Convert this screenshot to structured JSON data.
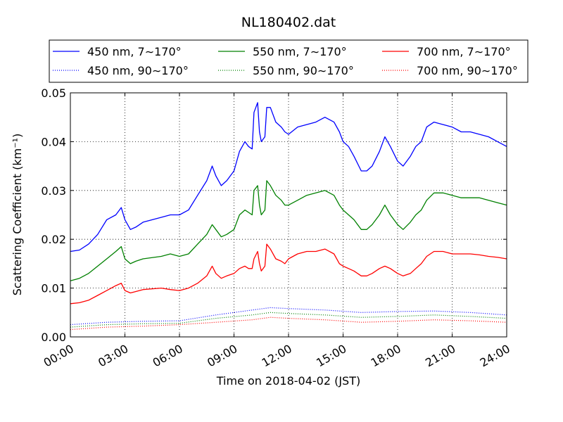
{
  "chart_data": {
    "type": "line",
    "title": "NL180402.dat",
    "xlabel": "Time on 2018-04-02 (JST)",
    "ylabel": "Scattering Coefficient (km⁻¹)",
    "x_unit": "hours",
    "xlim": [
      0,
      24
    ],
    "ylim": [
      0,
      0.05
    ],
    "x_ticks": [
      0,
      3,
      6,
      9,
      12,
      15,
      18,
      21,
      24
    ],
    "x_tick_labels": [
      "00:00",
      "03:00",
      "06:00",
      "09:00",
      "12:00",
      "15:00",
      "18:00",
      "21:00",
      "24:00"
    ],
    "y_ticks": [
      0,
      0.01,
      0.02,
      0.03,
      0.04,
      0.05
    ],
    "y_tick_labels": [
      "0.00",
      "0.01",
      "0.02",
      "0.03",
      "0.04",
      "0.05"
    ],
    "grid": true,
    "legend_position": "top",
    "series": [
      {
        "name": "450 nm, 7∼170°",
        "color": "#0000ff",
        "style": "solid",
        "x": [
          0,
          0.5,
          1,
          1.5,
          2,
          2.5,
          2.8,
          3,
          3.3,
          3.6,
          4,
          5,
          5.5,
          6,
          6.5,
          7,
          7.5,
          7.8,
          8,
          8.3,
          8.6,
          9,
          9.3,
          9.6,
          9.8,
          10,
          10.1,
          10.3,
          10.4,
          10.5,
          10.7,
          10.8,
          11,
          11.3,
          11.6,
          11.8,
          12,
          12.5,
          13,
          13.5,
          14,
          14.5,
          14.8,
          15,
          15.3,
          15.6,
          16,
          16.3,
          16.6,
          17,
          17.3,
          17.6,
          18,
          18.3,
          18.7,
          19,
          19.3,
          19.6,
          20,
          20.5,
          21,
          21.5,
          22,
          22.5,
          23,
          23.5,
          24
        ],
        "y": [
          0.0175,
          0.0178,
          0.019,
          0.021,
          0.024,
          0.025,
          0.0265,
          0.024,
          0.022,
          0.0225,
          0.0235,
          0.0245,
          0.025,
          0.025,
          0.026,
          0.029,
          0.032,
          0.035,
          0.033,
          0.031,
          0.032,
          0.034,
          0.038,
          0.04,
          0.039,
          0.0385,
          0.046,
          0.048,
          0.042,
          0.04,
          0.041,
          0.047,
          0.047,
          0.044,
          0.043,
          0.042,
          0.0415,
          0.043,
          0.0435,
          0.044,
          0.045,
          0.044,
          0.042,
          0.04,
          0.039,
          0.037,
          0.034,
          0.034,
          0.035,
          0.038,
          0.041,
          0.039,
          0.036,
          0.035,
          0.037,
          0.039,
          0.04,
          0.043,
          0.044,
          0.0435,
          0.043,
          0.042,
          0.042,
          0.0415,
          0.041,
          0.04,
          0.039
        ]
      },
      {
        "name": "450 nm, 90∼170°",
        "color": "#0000ff",
        "style": "dotted",
        "x": [
          0,
          2,
          4,
          6,
          8,
          10,
          11,
          12,
          14,
          16,
          18,
          20,
          22,
          24
        ],
        "y": [
          0.0025,
          0.003,
          0.0032,
          0.0033,
          0.0045,
          0.0055,
          0.006,
          0.0058,
          0.0055,
          0.005,
          0.0052,
          0.0053,
          0.005,
          0.0045
        ]
      },
      {
        "name": "550 nm, 7∼170°",
        "color": "#008000",
        "style": "solid",
        "x": [
          0,
          0.5,
          1,
          1.5,
          2,
          2.5,
          2.8,
          3,
          3.3,
          3.6,
          4,
          5,
          5.5,
          6,
          6.5,
          7,
          7.5,
          7.8,
          8,
          8.3,
          8.6,
          9,
          9.3,
          9.6,
          9.8,
          10,
          10.1,
          10.3,
          10.4,
          10.5,
          10.7,
          10.8,
          11,
          11.3,
          11.6,
          11.8,
          12,
          12.5,
          13,
          13.5,
          14,
          14.5,
          14.8,
          15,
          15.3,
          15.6,
          16,
          16.3,
          16.6,
          17,
          17.3,
          17.6,
          18,
          18.3,
          18.7,
          19,
          19.3,
          19.6,
          20,
          20.5,
          21,
          21.5,
          22,
          22.5,
          23,
          23.5,
          24
        ],
        "y": [
          0.0115,
          0.012,
          0.013,
          0.0145,
          0.016,
          0.0175,
          0.0185,
          0.016,
          0.015,
          0.0155,
          0.016,
          0.0165,
          0.017,
          0.0165,
          0.017,
          0.019,
          0.021,
          0.023,
          0.022,
          0.0205,
          0.021,
          0.022,
          0.025,
          0.026,
          0.0255,
          0.025,
          0.03,
          0.031,
          0.027,
          0.025,
          0.026,
          0.032,
          0.031,
          0.029,
          0.028,
          0.027,
          0.027,
          0.028,
          0.029,
          0.0295,
          0.03,
          0.029,
          0.027,
          0.026,
          0.025,
          0.024,
          0.022,
          0.022,
          0.023,
          0.025,
          0.027,
          0.025,
          0.023,
          0.022,
          0.0235,
          0.025,
          0.026,
          0.028,
          0.0295,
          0.0295,
          0.029,
          0.0285,
          0.0285,
          0.0285,
          0.028,
          0.0275,
          0.027
        ]
      },
      {
        "name": "550 nm, 90∼170°",
        "color": "#008000",
        "style": "dotted",
        "x": [
          0,
          2,
          4,
          6,
          8,
          10,
          11,
          12,
          14,
          16,
          18,
          20,
          22,
          24
        ],
        "y": [
          0.002,
          0.0025,
          0.0027,
          0.0028,
          0.0038,
          0.0045,
          0.005,
          0.0048,
          0.0045,
          0.004,
          0.0042,
          0.0045,
          0.0042,
          0.0038
        ]
      },
      {
        "name": "700 nm, 7∼170°",
        "color": "#ff0000",
        "style": "solid",
        "x": [
          0,
          0.5,
          1,
          1.5,
          2,
          2.5,
          2.8,
          3,
          3.3,
          3.6,
          4,
          5,
          5.5,
          6,
          6.5,
          7,
          7.5,
          7.8,
          8,
          8.3,
          8.6,
          9,
          9.3,
          9.6,
          9.8,
          10,
          10.1,
          10.3,
          10.4,
          10.5,
          10.7,
          10.8,
          11,
          11.3,
          11.6,
          11.8,
          12,
          12.5,
          13,
          13.5,
          14,
          14.5,
          14.8,
          15,
          15.3,
          15.6,
          16,
          16.3,
          16.6,
          17,
          17.3,
          17.6,
          18,
          18.3,
          18.7,
          19,
          19.3,
          19.6,
          20,
          20.5,
          21,
          21.5,
          22,
          22.5,
          23,
          23.5,
          24
        ],
        "y": [
          0.0068,
          0.007,
          0.0075,
          0.0085,
          0.0095,
          0.0105,
          0.011,
          0.0095,
          0.009,
          0.0093,
          0.0097,
          0.01,
          0.0097,
          0.0095,
          0.01,
          0.011,
          0.0125,
          0.0145,
          0.013,
          0.012,
          0.0125,
          0.013,
          0.014,
          0.0145,
          0.014,
          0.014,
          0.016,
          0.0175,
          0.015,
          0.0135,
          0.0145,
          0.019,
          0.018,
          0.016,
          0.0155,
          0.015,
          0.016,
          0.017,
          0.0175,
          0.0175,
          0.018,
          0.017,
          0.015,
          0.0145,
          0.014,
          0.0135,
          0.0125,
          0.0125,
          0.013,
          0.014,
          0.0145,
          0.014,
          0.013,
          0.0125,
          0.013,
          0.014,
          0.015,
          0.0165,
          0.0175,
          0.0175,
          0.017,
          0.017,
          0.017,
          0.0168,
          0.0165,
          0.0163,
          0.016
        ]
      },
      {
        "name": "700 nm, 90∼170°",
        "color": "#ff0000",
        "style": "dotted",
        "x": [
          0,
          2,
          4,
          6,
          8,
          10,
          11,
          12,
          14,
          16,
          18,
          20,
          22,
          24
        ],
        "y": [
          0.0015,
          0.002,
          0.0022,
          0.0025,
          0.003,
          0.0035,
          0.004,
          0.0038,
          0.0035,
          0.003,
          0.0032,
          0.0035,
          0.0033,
          0.003
        ]
      }
    ]
  }
}
